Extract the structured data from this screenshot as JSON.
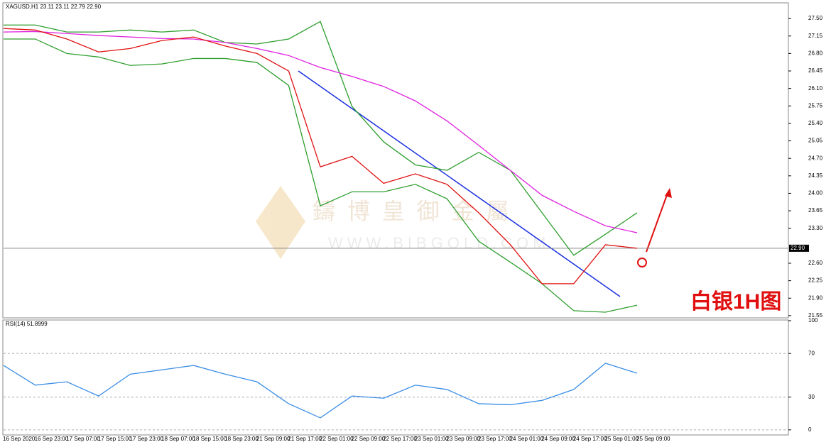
{
  "header": "XAGUSD,H1  23.11 23.11 22.79 22.90",
  "watermark": {
    "name": "鑄  博  皇  御  金  屬",
    "url": "WWW.BIBGOLD.COM"
  },
  "annotation": "白银1H图",
  "chart_data": [
    {
      "type": "line",
      "categories": [
        "16 Sep 2020",
        "16 Sep 23:00",
        "17 Sep 07:00",
        "17 Sep 15:00",
        "17 Sep 23:00",
        "18 Sep 07:00",
        "18 Sep 15:00",
        "18 Sep 23:00",
        "21 Sep 09:00",
        "21 Sep 17:00",
        "22 Sep 01:00",
        "22 Sep 09:00",
        "22 Sep 17:00",
        "23 Sep 01:00",
        "23 Sep 09:00",
        "23 Sep 17:00",
        "24 Sep 01:00",
        "24 Sep 09:00",
        "24 Sep 17:00",
        "25 Sep 01:00",
        "25 Sep 09:00"
      ],
      "series": [
        {
          "color": "#2e9e2e",
          "values": [
            27.37,
            27.37,
            27.23,
            27.23,
            27.27,
            27.23,
            27.27,
            27.02,
            26.99,
            27.09,
            27.44,
            25.74,
            25.03,
            24.57,
            24.46,
            24.82,
            24.46,
            23.61,
            22.76,
            23.18,
            23.61
          ]
        },
        {
          "color": "#2e9e2e",
          "values": [
            27.09,
            27.09,
            26.8,
            26.73,
            26.56,
            26.59,
            26.7,
            26.7,
            26.62,
            26.16,
            23.75,
            24.03,
            24.03,
            24.18,
            23.89,
            23.04,
            22.62,
            22.19,
            21.65,
            21.62,
            21.76
          ]
        },
        {
          "color": "#e020e0",
          "values": [
            27.23,
            27.24,
            27.2,
            27.16,
            27.13,
            27.1,
            27.09,
            27.02,
            26.9,
            26.76,
            26.52,
            26.34,
            26.14,
            25.85,
            25.45,
            24.96,
            24.46,
            23.96,
            23.64,
            23.35,
            23.21
          ]
        },
        {
          "color": "#e01010",
          "values": [
            27.3,
            27.27,
            27.09,
            26.83,
            26.9,
            27.06,
            27.13,
            26.95,
            26.8,
            26.45,
            24.53,
            24.74,
            24.2,
            24.39,
            24.18,
            23.61,
            22.97,
            22.19,
            22.19,
            22.97,
            22.9
          ]
        }
      ],
      "ylim": [
        21.52,
        27.8
      ],
      "yticks": [
        {
          "value": 27.5,
          "label": "27.50"
        },
        {
          "value": 27.15,
          "label": "27.15"
        },
        {
          "value": 26.8,
          "label": "26.80"
        },
        {
          "value": 26.45,
          "label": "26.45"
        },
        {
          "value": 26.1,
          "label": "26.10"
        },
        {
          "value": 25.75,
          "label": "25.75"
        },
        {
          "value": 25.4,
          "label": "25.40"
        },
        {
          "value": 25.05,
          "label": "25.05"
        },
        {
          "value": 24.7,
          "label": "24.70"
        },
        {
          "value": 24.35,
          "label": "24.35"
        },
        {
          "value": 24.0,
          "label": "24.00"
        },
        {
          "value": 23.65,
          "label": "23.65"
        },
        {
          "value": 23.3,
          "label": "23.30"
        },
        {
          "value": 22.6,
          "label": "22.60"
        },
        {
          "value": 22.25,
          "label": "22.25"
        },
        {
          "value": 21.9,
          "label": "21.90"
        },
        {
          "value": 21.55,
          "label": "21.55"
        }
      ],
      "current_price": {
        "value": 22.9,
        "label": "22.90"
      },
      "grid": false
    },
    {
      "type": "line",
      "title": "RSI(14) 51.8999",
      "series": [
        {
          "color": "#3a8ee6",
          "values": [
            59,
            41,
            44,
            31,
            51,
            55,
            59,
            51,
            44,
            24,
            11,
            31,
            29,
            41,
            37,
            24,
            23,
            27,
            37,
            61,
            51.9
          ]
        }
      ],
      "ylim": [
        -4,
        100
      ],
      "yticks": [
        100,
        70,
        30,
        0
      ],
      "grid": true
    }
  ]
}
